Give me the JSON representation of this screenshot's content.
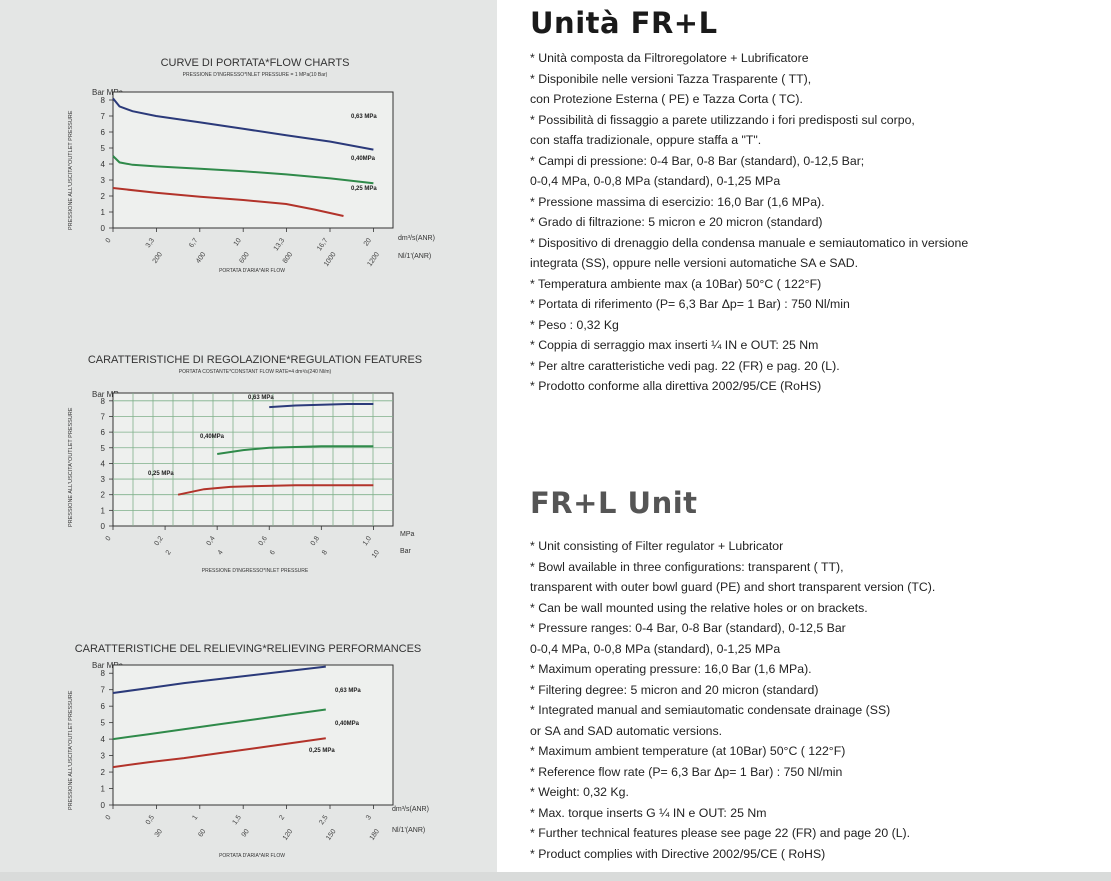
{
  "charts": [
    {
      "title": "CURVE DI PORTATA*FLOW CHARTS",
      "subtitle": "PRESSIONE D'INGRESSO*INLET PRESSURE = 1 MPa(10 Bar)",
      "unit_label": "Bar MPa",
      "y_axis_label": "PRESSIONE ALL'USCITA*OUTLET PRESSURE",
      "x_unit_1": "dm³/s(ANR)",
      "x_unit_2": "Nl/1'(ANR)",
      "x_caption": "PORTATA D'ARIA*AIR FLOW"
    },
    {
      "title": "CARATTERISTICHE DI REGOLAZIONE*REGULATION FEATURES",
      "subtitle": "PORTATA COSTANTE*CONSTANT FLOW RATE=4 dm³/s(240 Nl/m)",
      "unit_label": "Bar MPa",
      "y_axis_label": "PRESSIONE ALL'USCITA*OUTLET PRESSURE",
      "x_unit_1": "MPa",
      "x_unit_2": "Bar",
      "x_caption": "PRESSIONE D'INGRESSO*INLET PRESSURE"
    },
    {
      "title": "CARATTERISTICHE DEL RELIEVING*RELIEVING PERFORMANCES",
      "subtitle": "",
      "unit_label": "Bar MPa",
      "y_axis_label": "PRESSIONE ALL'USCITA*OUTLET PRESSURE",
      "x_unit_1": "dm³/s(ANR)",
      "x_unit_2": "Nl/1'(ANR)",
      "x_caption": "PORTATA D'ARIA*AIR FLOW"
    }
  ],
  "chart_data": [
    {
      "type": "line",
      "title": "CURVE DI PORTATA*FLOW CHARTS",
      "subtitle": "PRESSIONE D'INGRESSO*INLET PRESSURE = 1 MPa(10 Bar)",
      "ylabel": "PRESSIONE ALL'USCITA*OUTLET PRESSURE",
      "xlabel": "PORTATA D'ARIA*AIR FLOW",
      "x_units": [
        "dm³/s(ANR)",
        "Nl/1'(ANR)"
      ],
      "y_ticks": [
        "8",
        "7",
        "6",
        "5",
        "4",
        "3",
        "2",
        "1",
        "0"
      ],
      "x_ticks_top": [
        "0",
        "3,3",
        "6,7",
        "10",
        "13,3",
        "16,7",
        "20"
      ],
      "x_ticks_bottom": [
        "",
        "200",
        "400",
        "600",
        "800",
        "1000",
        "1200"
      ],
      "xlim": [
        0,
        20
      ],
      "ylim": [
        0,
        8.5
      ],
      "grid": false,
      "series": [
        {
          "name": "0,63 MPa",
          "color": "#2b3a7a",
          "x": [
            0,
            0.5,
            1.5,
            3.3,
            6.7,
            10,
            13.3,
            16.7,
            20
          ],
          "y": [
            8.1,
            7.6,
            7.3,
            7.0,
            6.6,
            6.2,
            5.8,
            5.4,
            4.9
          ]
        },
        {
          "name": "0,40MPa",
          "color": "#2f8a4a",
          "x": [
            0,
            0.5,
            1.5,
            3.3,
            6.7,
            10,
            13.3,
            16.7,
            20
          ],
          "y": [
            4.5,
            4.1,
            3.95,
            3.85,
            3.7,
            3.55,
            3.35,
            3.1,
            2.8
          ]
        },
        {
          "name": "0,25 MPa",
          "color": "#b2332a",
          "x": [
            0,
            3.3,
            6.7,
            10,
            13.3,
            15.5,
            17.7
          ],
          "y": [
            2.5,
            2.2,
            1.95,
            1.75,
            1.5,
            1.15,
            0.75
          ]
        }
      ]
    },
    {
      "type": "line",
      "title": "CARATTERISTICHE DI REGOLAZIONE*REGULATION FEATURES",
      "subtitle": "PORTATA COSTANTE*CONSTANT FLOW RATE=4 dm³/s(240 Nl/m)",
      "ylabel": "PRESSIONE ALL'USCITA*OUTLET PRESSURE",
      "xlabel": "PRESSIONE D'INGRESSO*INLET PRESSURE",
      "x_units": [
        "MPa",
        "Bar"
      ],
      "y_ticks": [
        "8",
        "7",
        "6",
        "5",
        "4",
        "3",
        "2",
        "1",
        "0"
      ],
      "x_ticks_top": [
        "0",
        "0,2",
        "0,4",
        "0,6",
        "0,8",
        "1,0"
      ],
      "x_ticks_bottom": [
        "",
        "2",
        "4",
        "6",
        "8",
        "10"
      ],
      "xlim": [
        0,
        1.0
      ],
      "ylim": [
        0,
        8.5
      ],
      "grid": true,
      "series": [
        {
          "name": "0,63 MPa",
          "color": "#2b3a7a",
          "x": [
            0.6,
            0.7,
            0.8,
            0.9,
            1.0
          ],
          "y": [
            7.6,
            7.7,
            7.75,
            7.8,
            7.8
          ]
        },
        {
          "name": "0,40MPa",
          "color": "#2f8a4a",
          "x": [
            0.4,
            0.5,
            0.6,
            0.7,
            0.8,
            0.9,
            1.0
          ],
          "y": [
            4.6,
            4.85,
            5.0,
            5.05,
            5.1,
            5.1,
            5.1
          ]
        },
        {
          "name": "0,25 MPa",
          "color": "#b2332a",
          "x": [
            0.25,
            0.35,
            0.45,
            0.55,
            0.7,
            0.85,
            1.0
          ],
          "y": [
            2.0,
            2.35,
            2.5,
            2.55,
            2.6,
            2.6,
            2.6
          ]
        }
      ]
    },
    {
      "type": "line",
      "title": "CARATTERISTICHE DEL RELIEVING*RELIEVING PERFORMANCES",
      "ylabel": "PRESSIONE ALL'USCITA*OUTLET PRESSURE",
      "xlabel": "PORTATA D'ARIA*AIR FLOW",
      "x_units": [
        "dm³/s(ANR)",
        "Nl/1'(ANR)"
      ],
      "y_ticks": [
        "8",
        "7",
        "6",
        "5",
        "4",
        "3",
        "2",
        "1",
        "0"
      ],
      "x_ticks_top": [
        "0",
        "0,5",
        "1",
        "1,5",
        "2",
        "2,5",
        "3"
      ],
      "x_ticks_bottom": [
        "",
        "30",
        "60",
        "90",
        "120",
        "150",
        "180"
      ],
      "xlim": [
        0,
        3
      ],
      "ylim": [
        0,
        8.5
      ],
      "grid": false,
      "series": [
        {
          "name": "0,63 MPa",
          "color": "#2b3a7a",
          "x": [
            0,
            0.5,
            1.0,
            1.5,
            2.0,
            2.5,
            3.0
          ],
          "y": [
            6.8,
            7.1,
            7.4,
            7.65,
            7.9,
            8.15,
            8.4
          ]
        },
        {
          "name": "0,40MPa",
          "color": "#2f8a4a",
          "x": [
            0,
            0.5,
            1.0,
            1.5,
            2.0,
            2.5,
            3.0
          ],
          "y": [
            4.0,
            4.3,
            4.6,
            4.9,
            5.2,
            5.5,
            5.8
          ]
        },
        {
          "name": "0,25 MPa",
          "color": "#b2332a",
          "x": [
            0,
            0.5,
            1.0,
            1.5,
            2.0,
            2.5,
            3.0
          ],
          "y": [
            2.3,
            2.6,
            2.85,
            3.15,
            3.45,
            3.75,
            4.05
          ]
        }
      ]
    }
  ],
  "italian": {
    "heading": "Unità FR+L",
    "lines": [
      "* Unità composta da Filtroregolatore + Lubrificatore",
      "* Disponibile nelle versioni Tazza Trasparente ( TT),",
      "con Protezione Esterna ( PE) e Tazza Corta ( TC).",
      "* Possibilità di fissaggio a parete utilizzando i fori predisposti sul corpo,",
      "con staffa tradizionale, oppure staffa a \"T\".",
      "* Campi di pressione: 0-4 Bar, 0-8 Bar (standard), 0-12,5 Bar;",
      "0-0,4 MPa, 0-0,8 MPa (standard), 0-1,25 MPa",
      "* Pressione massima di esercizio: 16,0 Bar (1,6 MPa).",
      "* Grado di filtrazione: 5 micron e 20 micron (standard)",
      "* Dispositivo di drenaggio della condensa manuale e semiautomatico in versione",
      "integrata (SS), oppure nelle versioni automatiche SA e SAD.",
      "* Temperatura ambiente max (a 10Bar) 50°C ( 122°F)",
      "* Portata di riferimento (P= 6,3 Bar Δp= 1 Bar) : 750 Nl/min",
      "* Peso : 0,32 Kg",
      "* Coppia di serraggio max inserti ¼ IN e OUT: 25 Nm",
      "* Per altre caratteristiche vedi pag. 22 (FR) e pag. 20 (L).",
      "* Prodotto conforme alla direttiva 2002/95/CE (RoHS)"
    ]
  },
  "english": {
    "heading": "FR+L Unit",
    "lines": [
      "* Unit consisting of Filter regulator + Lubricator",
      "* Bowl available in three configurations: transparent ( TT),",
      "transparent with outer bowl guard (PE) and short transparent version (TC).",
      "* Can be wall mounted using the relative holes or on brackets.",
      "* Pressure ranges: 0-4 Bar, 0-8 Bar (standard), 0-12,5 Bar",
      "0-0,4 MPa, 0-0,8 MPa (standard), 0-1,25 MPa",
      "* Maximum operating pressure: 16,0 Bar (1,6 MPa).",
      "* Filtering degree: 5 micron and 20 micron (standard)",
      "* Integrated manual and semiautomatic condensate drainage (SS)",
      "or SA and SAD automatic versions.",
      "* Maximum ambient temperature (at 10Bar) 50°C ( 122°F)",
      "* Reference flow rate (P= 6,3 Bar Δp= 1 Bar) : 750 Nl/min",
      "* Weight: 0,32 Kg.",
      "* Max. torque inserts G ¼ IN e OUT: 25 Nm",
      "* Further technical features please see page 22 (FR) and page 20 (L).",
      "* Product complies with Directive 2002/95/CE ( RoHS)"
    ]
  }
}
